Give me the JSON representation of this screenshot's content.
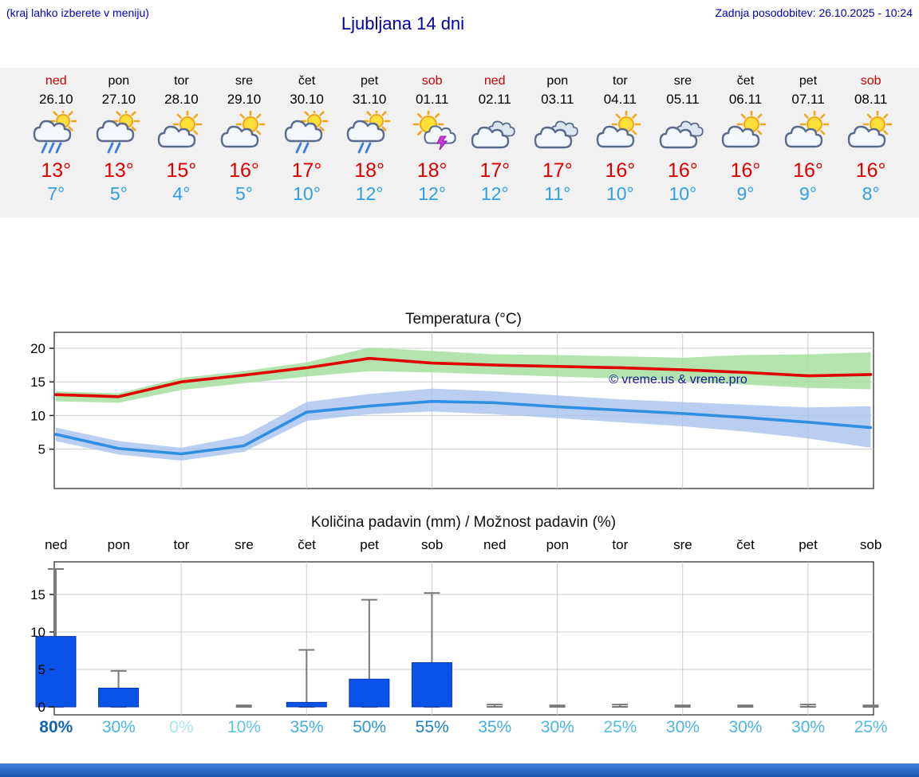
{
  "header": {
    "menu_hint": "(kraj lahko izberete v meniju)",
    "title": "Ljubljana 14 dni",
    "last_update": "Zadnja posodobitev: 26.10.2025 - 10:24"
  },
  "colors": {
    "accent_blue": "#0000cc",
    "day_red": "#cc0000",
    "temp_high_red": "#dd0000",
    "temp_low_blue": "#2f9fe8",
    "strip_bg": "#f1f1f1",
    "bar_blue": "#0b52e8",
    "max_band_green": "#a6dfa0",
    "min_band_blue": "#a8c2ee",
    "footer_blue": "#1a55b0"
  },
  "forecast_days": [
    {
      "name": "ned",
      "date": "26.10",
      "red": true,
      "icon_type": "shower-heavy",
      "icon_name": "sun-cloud-heavy-rain-icon",
      "temp_high": "13°",
      "temp_low": "7°"
    },
    {
      "name": "pon",
      "date": "27.10",
      "red": false,
      "icon_type": "shower",
      "icon_name": "sun-cloud-rain-icon",
      "temp_high": "13°",
      "temp_low": "5°"
    },
    {
      "name": "tor",
      "date": "28.10",
      "red": false,
      "icon_type": "partly",
      "icon_name": "sun-cloud-icon",
      "temp_high": "15°",
      "temp_low": "4°"
    },
    {
      "name": "sre",
      "date": "29.10",
      "red": false,
      "icon_type": "partly",
      "icon_name": "sun-cloud-icon",
      "temp_high": "16°",
      "temp_low": "5°"
    },
    {
      "name": "čet",
      "date": "30.10",
      "red": false,
      "icon_type": "shower",
      "icon_name": "sun-cloud-rain-icon",
      "temp_high": "17°",
      "temp_low": "10°"
    },
    {
      "name": "pet",
      "date": "31.10",
      "red": false,
      "icon_type": "shower",
      "icon_name": "sun-cloud-rain-icon",
      "temp_high": "18°",
      "temp_low": "12°"
    },
    {
      "name": "sob",
      "date": "01.11",
      "red": true,
      "icon_type": "thunder",
      "icon_name": "sun-thunderstorm-icon",
      "temp_high": "18°",
      "temp_low": "12°"
    },
    {
      "name": "ned",
      "date": "02.11",
      "red": true,
      "icon_type": "cloudy",
      "icon_name": "cloudy-icon",
      "temp_high": "17°",
      "temp_low": "12°"
    },
    {
      "name": "pon",
      "date": "03.11",
      "red": false,
      "icon_type": "cloudy",
      "icon_name": "cloudy-icon",
      "temp_high": "17°",
      "temp_low": "11°"
    },
    {
      "name": "tor",
      "date": "04.11",
      "red": false,
      "icon_type": "partly",
      "icon_name": "sun-cloud-icon",
      "temp_high": "16°",
      "temp_low": "10°"
    },
    {
      "name": "sre",
      "date": "05.11",
      "red": false,
      "icon_type": "cloudy",
      "icon_name": "cloudy-icon",
      "temp_high": "16°",
      "temp_low": "10°"
    },
    {
      "name": "čet",
      "date": "06.11",
      "red": false,
      "icon_type": "partly",
      "icon_name": "sun-cloud-icon",
      "temp_high": "16°",
      "temp_low": "9°"
    },
    {
      "name": "pet",
      "date": "07.11",
      "red": false,
      "icon_type": "partly",
      "icon_name": "sun-cloud-icon",
      "temp_high": "16°",
      "temp_low": "9°"
    },
    {
      "name": "sob",
      "date": "08.11",
      "red": true,
      "icon_type": "partly",
      "icon_name": "sun-cloud-icon",
      "temp_high": "16°",
      "temp_low": "8°"
    }
  ],
  "chart_data": [
    {
      "type": "line",
      "title": "Temperatura (°C)",
      "watermark": "© vreme.us & vreme.pro",
      "categories": [
        "ned 26.10",
        "pon 27.10",
        "tor 28.10",
        "sre 29.10",
        "čet 30.10",
        "pet 31.10",
        "sob 01.11",
        "ned 02.11",
        "pon 03.11",
        "tor 04.11",
        "sre 05.11",
        "čet 06.11",
        "pet 07.11",
        "sob 08.11"
      ],
      "yticks": [
        5,
        10,
        15,
        20
      ],
      "ylim": [
        -1,
        22.5
      ],
      "grid": true,
      "legend": "none",
      "series": [
        {
          "name": "max temperature",
          "color": "#e00000",
          "values": [
            13.1,
            12.8,
            15.0,
            16.0,
            17.1,
            18.5,
            17.8,
            17.5,
            17.3,
            17.1,
            16.8,
            16.4,
            15.9,
            16.1
          ]
        },
        {
          "name": "min temperature",
          "color": "#2f8fe0",
          "values": [
            7.2,
            5.1,
            4.3,
            5.5,
            10.5,
            11.4,
            12.1,
            11.9,
            11.3,
            10.8,
            10.3,
            9.7,
            9.0,
            8.2
          ]
        }
      ],
      "bands": [
        {
          "name": "max temperature range",
          "color": "#a6dfa0",
          "upper": [
            13.6,
            13.3,
            15.6,
            16.6,
            17.9,
            20.1,
            19.6,
            19.1,
            19.0,
            18.8,
            18.6,
            19.0,
            19.1,
            19.4
          ],
          "lower": [
            12.1,
            11.9,
            13.8,
            14.8,
            15.8,
            16.6,
            16.4,
            16.1,
            15.8,
            15.5,
            15.1,
            14.6,
            14.1,
            13.9
          ]
        },
        {
          "name": "min temperature range",
          "color": "#a8c2ee",
          "upper": [
            8.2,
            6.2,
            5.2,
            7.0,
            12.0,
            13.2,
            14.0,
            13.6,
            13.0,
            12.4,
            12.0,
            11.6,
            11.2,
            11.4
          ],
          "lower": [
            6.2,
            4.2,
            3.3,
            4.6,
            9.2,
            10.2,
            10.6,
            10.2,
            9.6,
            9.0,
            8.4,
            7.6,
            6.6,
            5.2
          ]
        }
      ]
    },
    {
      "type": "bar",
      "title": "Količina padavin (mm) / Možnost padavin (%)",
      "categories": [
        "ned",
        "pon",
        "tor",
        "sre",
        "čet",
        "pet",
        "sob",
        "ned",
        "pon",
        "tor",
        "sre",
        "čet",
        "pet",
        "sob"
      ],
      "values": [
        9.4,
        2.5,
        0,
        0,
        0.6,
        3.7,
        5.9,
        0,
        0,
        0,
        0,
        0,
        0,
        0
      ],
      "whisker_max": [
        18.4,
        4.8,
        0,
        0.2,
        7.6,
        14.3,
        15.2,
        0.3,
        0.2,
        0.3,
        0.2,
        0.2,
        0.3,
        0.2
      ],
      "yticks": [
        0,
        5,
        10,
        15
      ],
      "ylim": [
        0,
        19.3
      ],
      "bar_color": "#0b52e8",
      "probabilities": [
        {
          "label": "80%",
          "color": "#1566b2",
          "bold": true
        },
        {
          "label": "30%",
          "color": "#4db4e4",
          "bold": false
        },
        {
          "label": "0%",
          "color": "#a9e6f0",
          "bold": false
        },
        {
          "label": "10%",
          "color": "#5cc2ea",
          "bold": false
        },
        {
          "label": "35%",
          "color": "#46aee1",
          "bold": false
        },
        {
          "label": "50%",
          "color": "#2e96d2",
          "bold": false
        },
        {
          "label": "55%",
          "color": "#2081c4",
          "bold": false
        },
        {
          "label": "35%",
          "color": "#46aee1",
          "bold": false
        },
        {
          "label": "30%",
          "color": "#4db4e4",
          "bold": false
        },
        {
          "label": "25%",
          "color": "#55bbe7",
          "bold": false
        },
        {
          "label": "30%",
          "color": "#4db4e4",
          "bold": false
        },
        {
          "label": "30%",
          "color": "#4db4e4",
          "bold": false
        },
        {
          "label": "30%",
          "color": "#4db4e4",
          "bold": false
        },
        {
          "label": "25%",
          "color": "#55bbe7",
          "bold": false
        }
      ]
    }
  ]
}
